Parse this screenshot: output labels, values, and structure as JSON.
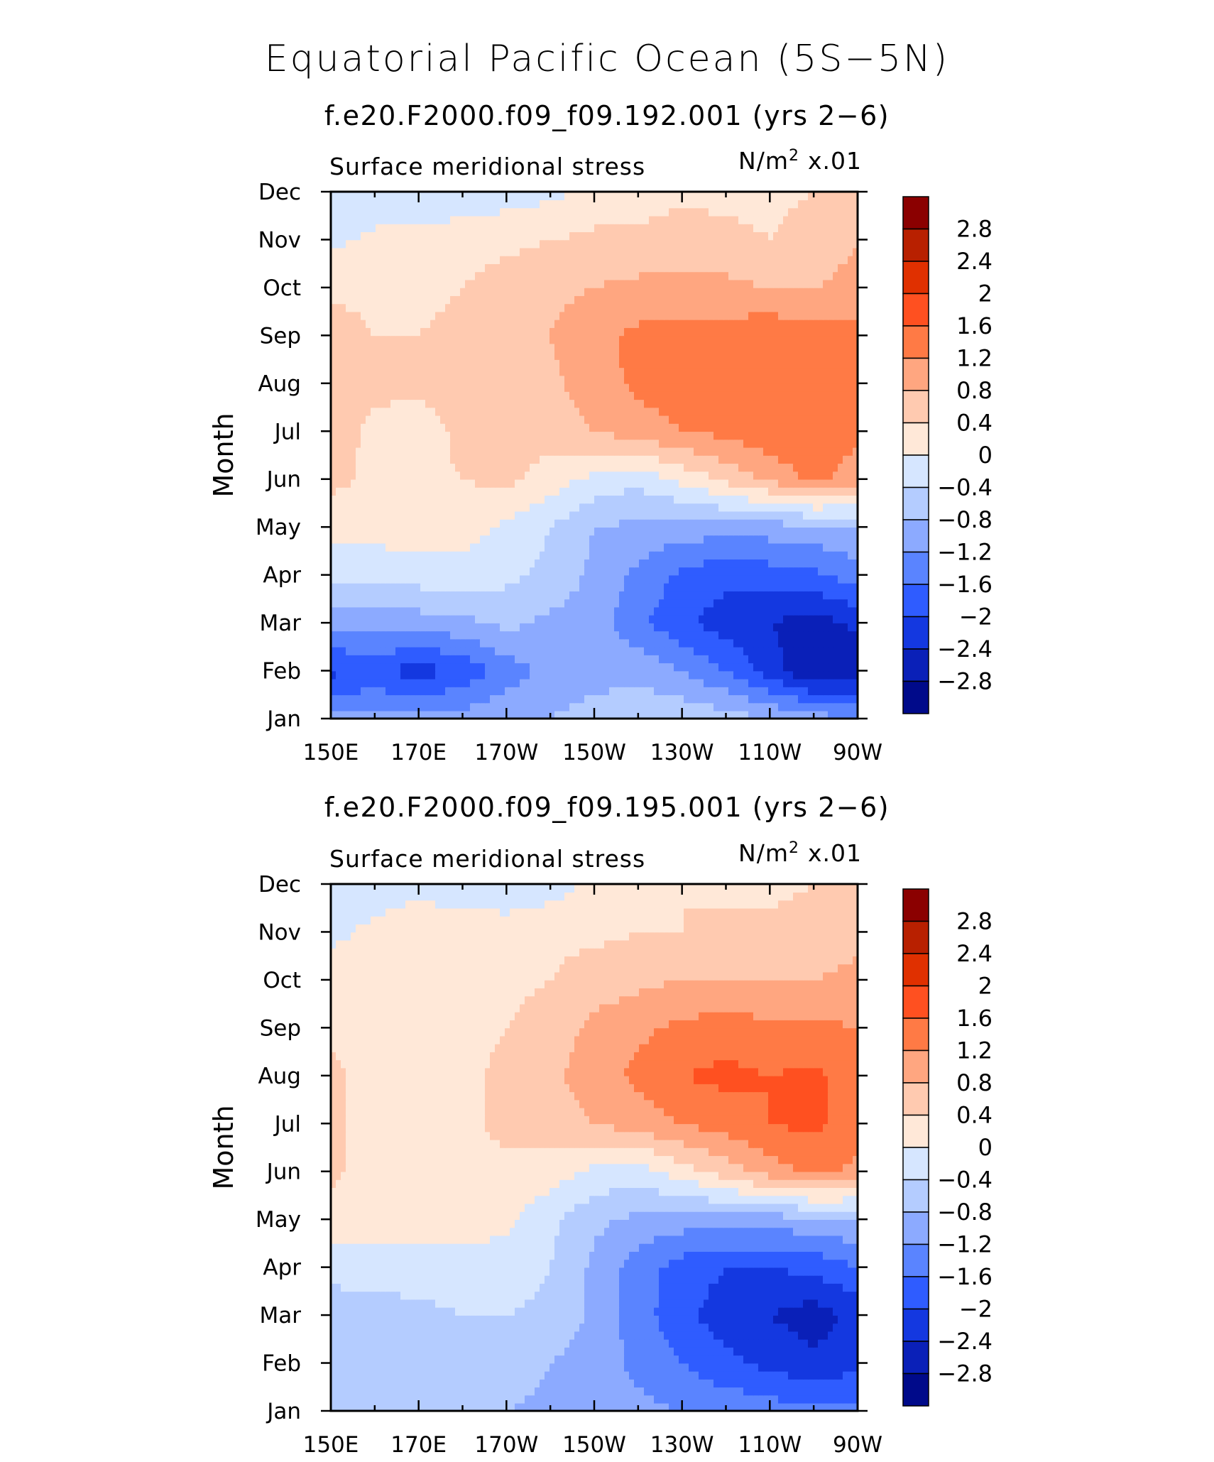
{
  "chart_data": {
    "type": "heatmap",
    "title": "Equatorial Pacific Ocean (5S−5N)",
    "colorbar": {
      "levels": [
        "2.8",
        "2.4",
        "2",
        "1.6",
        "1.2",
        "0.8",
        "0.4",
        "0",
        "−0.4",
        "−0.8",
        "−1.2",
        "−1.6",
        "−2",
        "−2.4",
        "−2.8"
      ],
      "colors": [
        "#8b0000",
        "#b82000",
        "#e03000",
        "#ff5020",
        "#ff7a45",
        "#ffa680",
        "#ffcab0",
        "#ffe8d8",
        "#d6e6ff",
        "#b4ccff",
        "#8caaff",
        "#5a84ff",
        "#2f5cff",
        "#1438e0",
        "#0a20b8",
        "#000a8a"
      ]
    },
    "panels": [
      {
        "subtitle": "f.e20.F2000.f09_f09.192.001 (yrs 2−6)",
        "variable": "Surface meridional stress",
        "units_prefix": "N/m",
        "units_sup": "2",
        "units_scale": "x.01",
        "ylabel": "Month",
        "x_ticks": [
          "150E",
          "170E",
          "170W",
          "150W",
          "130W",
          "110W",
          "90W"
        ],
        "y_ticks": [
          "Jan",
          "Feb",
          "Mar",
          "Apr",
          "May",
          "Jun",
          "Jul",
          "Aug",
          "Sep",
          "Oct",
          "Nov",
          "Dec"
        ],
        "x_range_deg_east": [
          150,
          270
        ],
        "y_range_month": [
          1,
          12
        ],
        "values": [
          [
            -1.1,
            -1.1,
            -1.0,
            -1.0,
            -0.9,
            -0.8,
            -0.6,
            -0.5,
            -0.5,
            -0.6,
            -0.8,
            -1.0,
            -1.2
          ],
          [
            -2.1,
            -1.9,
            -2.2,
            -1.9,
            -1.4,
            -1.1,
            -1.0,
            -0.9,
            -1.2,
            -1.6,
            -2.2,
            -2.8,
            -2.7
          ],
          [
            -1.0,
            -1.0,
            -1.0,
            -0.9,
            -0.7,
            -0.9,
            -1.0,
            -1.5,
            -1.9,
            -2.2,
            -2.4,
            -2.6,
            -2.3
          ],
          [
            -0.3,
            -0.3,
            -0.2,
            -0.2,
            -0.3,
            -0.5,
            -0.9,
            -1.3,
            -1.7,
            -1.9,
            -1.8,
            -1.7,
            -1.4
          ],
          [
            0.2,
            0.2,
            0.2,
            0.2,
            -0.1,
            -0.4,
            -0.8,
            -0.9,
            -1.0,
            -1.0,
            -1.0,
            -0.9,
            -0.8
          ],
          [
            0.5,
            0.3,
            0.3,
            0.4,
            0.5,
            0.2,
            -0.1,
            -0.3,
            0.1,
            0.5,
            0.9,
            1.3,
            1.0
          ],
          [
            0.6,
            0.3,
            0.2,
            0.5,
            0.6,
            0.6,
            0.8,
            1.0,
            1.2,
            1.3,
            1.5,
            1.5,
            1.3
          ],
          [
            0.7,
            0.5,
            0.5,
            0.6,
            0.6,
            0.7,
            1.0,
            1.3,
            1.4,
            1.5,
            1.6,
            1.5,
            1.4
          ],
          [
            0.6,
            0.4,
            0.4,
            0.5,
            0.6,
            0.8,
            1.1,
            1.3,
            1.4,
            1.4,
            1.5,
            1.4,
            1.3
          ],
          [
            0.3,
            0.3,
            0.3,
            0.4,
            0.6,
            0.7,
            0.8,
            0.9,
            0.9,
            0.9,
            0.8,
            0.8,
            0.9
          ],
          [
            -0.1,
            0.1,
            0.1,
            0.2,
            0.3,
            0.4,
            0.5,
            0.5,
            0.6,
            0.5,
            0.4,
            0.6,
            0.8
          ],
          [
            -0.3,
            -0.3,
            -0.3,
            -0.2,
            -0.2,
            -0.1,
            0.1,
            0.2,
            0.3,
            0.3,
            0.3,
            0.4,
            0.5
          ]
        ]
      },
      {
        "subtitle": "f.e20.F2000.f09_f09.195.001 (yrs 2−6)",
        "variable": "Surface meridional stress",
        "units_prefix": "N/m",
        "units_sup": "2",
        "units_scale": "x.01",
        "ylabel": "Month",
        "x_ticks": [
          "150E",
          "170E",
          "170W",
          "150W",
          "130W",
          "110W",
          "90W"
        ],
        "y_ticks": [
          "Jan",
          "Feb",
          "Mar",
          "Apr",
          "May",
          "Jun",
          "Jul",
          "Aug",
          "Sep",
          "Oct",
          "Nov",
          "Dec"
        ],
        "x_range_deg_east": [
          150,
          270
        ],
        "y_range_month": [
          1,
          12
        ],
        "values": [
          [
            -0.7,
            -0.6,
            -0.6,
            -0.6,
            -0.8,
            -0.9,
            -1.0,
            -1.1,
            -1.2,
            -1.3,
            -1.4,
            -1.5,
            -1.5
          ],
          [
            -0.7,
            -0.6,
            -0.6,
            -0.6,
            -0.6,
            -0.8,
            -1.0,
            -1.3,
            -1.6,
            -1.9,
            -2.1,
            -2.3,
            -2.1
          ],
          [
            -0.7,
            -0.6,
            -0.5,
            -0.4,
            -0.4,
            -0.5,
            -0.9,
            -1.4,
            -1.9,
            -2.2,
            -2.4,
            -2.6,
            -2.3
          ],
          [
            -0.2,
            -0.2,
            -0.2,
            -0.2,
            -0.2,
            -0.4,
            -0.9,
            -1.4,
            -1.8,
            -2.0,
            -2.0,
            -1.9,
            -1.6
          ],
          [
            0.2,
            0.2,
            0.2,
            0.2,
            0.1,
            -0.3,
            -0.7,
            -0.9,
            -1.0,
            -1.0,
            -1.0,
            -0.9,
            -0.8
          ],
          [
            0.5,
            0.2,
            0.2,
            0.3,
            0.3,
            0.2,
            -0.1,
            -0.2,
            0.2,
            0.6,
            1.0,
            1.3,
            1.1
          ],
          [
            0.5,
            0.2,
            0.2,
            0.3,
            0.5,
            0.6,
            0.8,
            1.0,
            1.2,
            1.4,
            1.6,
            1.7,
            1.4
          ],
          [
            0.5,
            0.2,
            0.2,
            0.3,
            0.5,
            0.7,
            1.0,
            1.3,
            1.6,
            1.7,
            1.6,
            1.7,
            1.4
          ],
          [
            0.3,
            0.2,
            0.2,
            0.3,
            0.4,
            0.6,
            0.9,
            1.1,
            1.3,
            1.4,
            1.3,
            1.3,
            1.2
          ],
          [
            0.2,
            0.2,
            0.2,
            0.2,
            0.3,
            0.4,
            0.6,
            0.7,
            0.8,
            0.8,
            0.8,
            0.8,
            0.9
          ],
          [
            -0.1,
            0.1,
            0.2,
            0.2,
            0.2,
            0.3,
            0.3,
            0.4,
            0.4,
            0.5,
            0.5,
            0.6,
            0.7
          ],
          [
            -0.3,
            -0.2,
            -0.1,
            -0.2,
            -0.3,
            -0.2,
            0.1,
            0.3,
            0.4,
            0.3,
            0.3,
            0.4,
            0.5
          ]
        ]
      }
    ]
  }
}
